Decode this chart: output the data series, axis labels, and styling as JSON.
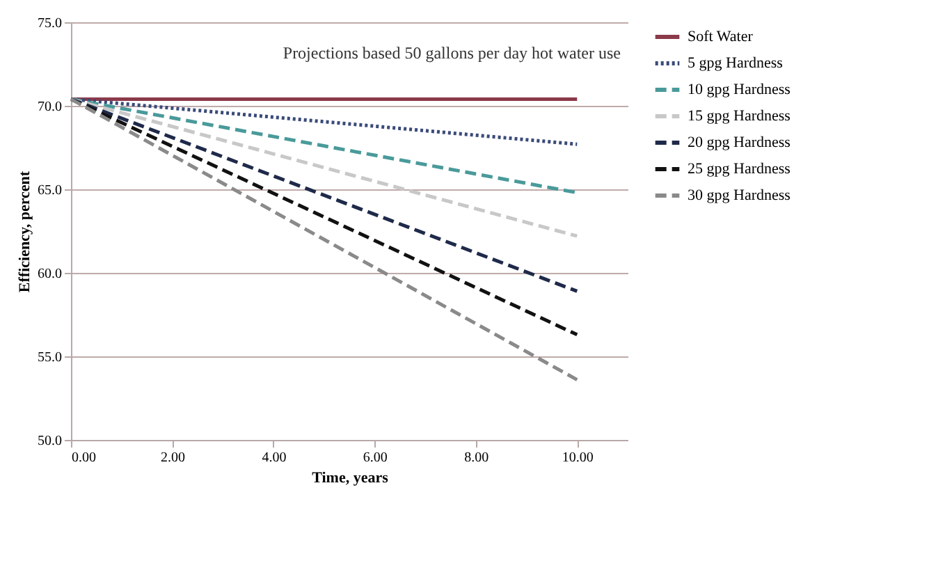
{
  "chart_data": {
    "type": "line",
    "xlabel": "Time, years",
    "ylabel": "Efficiency, percent",
    "annotations": [
      "Projections based 50 gallons per day hot water use"
    ],
    "x": [
      0,
      10
    ],
    "series": [
      {
        "name": "Soft Water",
        "color": "#8b3a4a",
        "values": [
          70.4,
          70.4
        ],
        "line_style": "solid"
      },
      {
        "name": "5 gpg Hardness",
        "color": "#3a4a7a",
        "values": [
          70.4,
          67.7
        ],
        "line_style": "dotted"
      },
      {
        "name": "10 gpg Hardness",
        "color": "#4a9a9a",
        "values": [
          70.4,
          64.8
        ],
        "line_style": "dashed"
      },
      {
        "name": "15 gpg Hardness",
        "color": "#c8c8c8",
        "values": [
          70.4,
          62.2
        ],
        "line_style": "dashed"
      },
      {
        "name": "20 gpg Hardness",
        "color": "#1f2a4a",
        "values": [
          70.4,
          58.9
        ],
        "line_style": "dashed"
      },
      {
        "name": "25 gpg Hardness",
        "color": "#111111",
        "values": [
          70.4,
          56.3
        ],
        "line_style": "dashed"
      },
      {
        "name": "30 gpg Hardness",
        "color": "#8a8a8a",
        "values": [
          70.4,
          53.6
        ],
        "line_style": "dashed"
      }
    ],
    "xlim": [
      0,
      11
    ],
    "xticks": [
      {
        "value": 0,
        "label": "0.00"
      },
      {
        "value": 2,
        "label": "2.00"
      },
      {
        "value": 4,
        "label": "4.00"
      },
      {
        "value": 6,
        "label": "6.00"
      },
      {
        "value": 8,
        "label": "8.00"
      },
      {
        "value": 10,
        "label": "10.00"
      }
    ],
    "ylim": [
      50,
      75
    ],
    "yticks": [
      {
        "value": 50,
        "label": "50.0"
      },
      {
        "value": 55,
        "label": "55.0"
      },
      {
        "value": 60,
        "label": "60.0"
      },
      {
        "value": 65,
        "label": "65.0"
      },
      {
        "value": 70,
        "label": "70.0"
      },
      {
        "value": 75,
        "label": "75.0"
      }
    ],
    "grid": "y",
    "legend": "right",
    "marker": "none"
  }
}
